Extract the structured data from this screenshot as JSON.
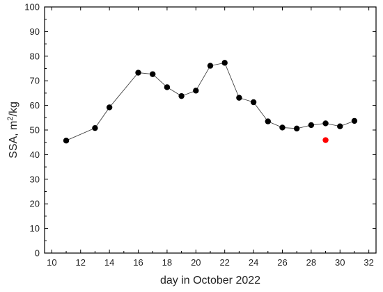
{
  "chart_data": {
    "type": "scatter",
    "title": "",
    "xlabel": "day in October 2022",
    "ylabel": "SSA, m²/kg",
    "ylabel_parts": {
      "main": "SSA, m",
      "sup": "2",
      "tail": "/kg"
    },
    "xlim": [
      9.5,
      32.5
    ],
    "ylim": [
      0,
      100
    ],
    "xticks": [
      10,
      12,
      14,
      16,
      18,
      20,
      22,
      24,
      26,
      28,
      30,
      32
    ],
    "yticks": [
      0,
      10,
      20,
      30,
      40,
      50,
      60,
      70,
      80,
      90,
      100
    ],
    "grid": false,
    "series": [
      {
        "color": "#000000",
        "line": true,
        "x": [
          11,
          13,
          14,
          16,
          17,
          18,
          19,
          20,
          21,
          22,
          23,
          24,
          25,
          26,
          27,
          28,
          29,
          30,
          31
        ],
        "y": [
          45.7,
          50.8,
          59.2,
          73.3,
          72.7,
          67.4,
          63.8,
          66.0,
          76.1,
          77.3,
          63.1,
          61.3,
          53.5,
          51.0,
          50.6,
          52.0,
          52.7,
          51.5,
          53.7
        ]
      },
      {
        "color": "#ff0000",
        "line": false,
        "x": [
          29
        ],
        "y": [
          45.9
        ]
      }
    ]
  }
}
